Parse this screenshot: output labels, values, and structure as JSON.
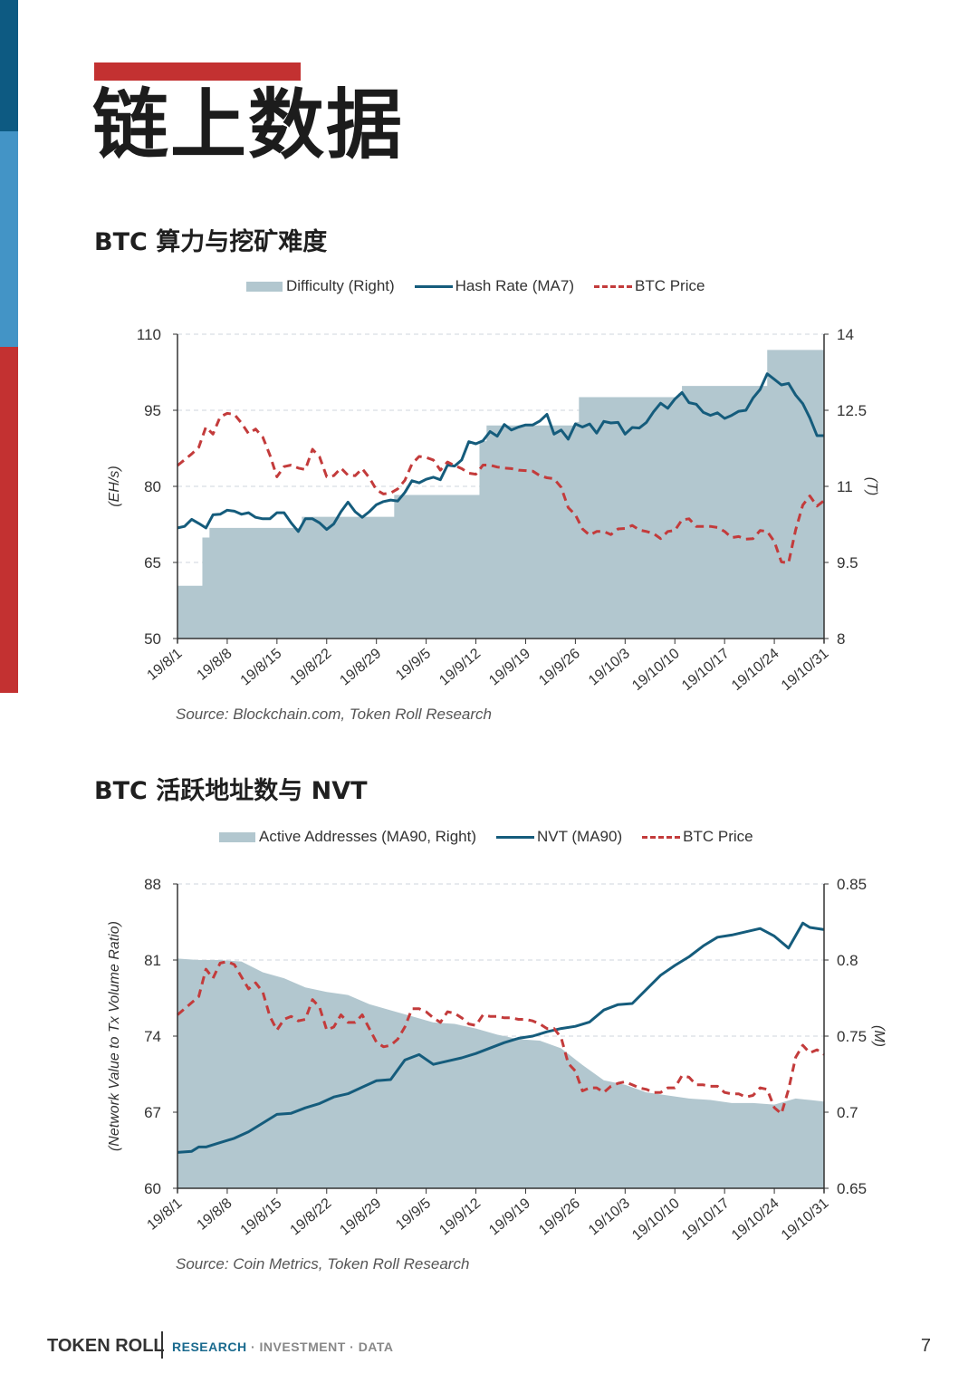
{
  "sidebar": {
    "colors": [
      "#0d5a82",
      "#4394c6",
      "#c33131"
    ]
  },
  "page": {
    "title": "链上数据",
    "accent_color": "#c33131"
  },
  "sections": [
    {
      "title": "BTC 算力与挖矿难度",
      "source": "Source: Blockchain.com, Token Roll Research"
    },
    {
      "title": "BTC 活跃地址数与 NVT",
      "source": "Source: Coin Metrics, Token Roll Research"
    }
  ],
  "footer": {
    "brand": "TOKEN ROLL",
    "tag_highlight": "RESEARCH",
    "tag_rest": " · INVESTMENT · DATA",
    "page_number": "7"
  },
  "chart_data": [
    {
      "type": "line",
      "title": "BTC 算力与挖矿难度",
      "legend": [
        "Difficulty (Right)",
        "Hash Rate (MA7)",
        "BTC Price"
      ],
      "legend_position": "top",
      "grid": true,
      "categories": [
        "19/8/1",
        "19/8/8",
        "19/8/15",
        "19/8/22",
        "19/8/29",
        "19/9/5",
        "19/9/12",
        "19/9/19",
        "19/9/26",
        "19/10/3",
        "19/10/10",
        "19/10/17",
        "19/10/24",
        "19/10/31"
      ],
      "ylabel": "(EH/s)",
      "ylabel_right": "(T)",
      "ylim": [
        50,
        110
      ],
      "yticks": [
        50,
        65,
        80,
        95,
        110
      ],
      "ylim_right": [
        8,
        14
      ],
      "yticks_right": [
        8,
        9.5,
        11,
        12.5,
        14
      ],
      "colors": {
        "difficulty": "#b2c7cf",
        "hash_rate": "#155c7c",
        "price": "#c33b3b"
      },
      "series": [
        {
          "name": "Difficulty (Right)",
          "type": "step-area",
          "axis": "right",
          "steps": [
            {
              "start_day": 0,
              "value": 9.04
            },
            {
              "start_day": 3.5,
              "value": 9.99
            },
            {
              "start_day": 4.5,
              "value": 10.18
            },
            {
              "start_day": 17,
              "value": 10.18
            },
            {
              "start_day": 17.5,
              "value": 10.4
            },
            {
              "start_day": 30.5,
              "value": 10.83
            },
            {
              "start_day": 42.5,
              "value": 11.89
            },
            {
              "start_day": 43.5,
              "value": 12.2
            },
            {
              "start_day": 56,
              "value": 12.27
            },
            {
              "start_day": 56.5,
              "value": 12.76
            },
            {
              "start_day": 70.5,
              "value": 12.83
            },
            {
              "start_day": 71,
              "value": 12.98
            },
            {
              "start_day": 83,
              "value": 13.69
            }
          ]
        },
        {
          "name": "Hash Rate (MA7)",
          "axis": "left",
          "x_days": [
            0,
            1,
            2,
            3,
            4,
            5,
            6,
            7,
            8,
            9,
            10,
            11,
            12,
            13,
            14,
            15,
            16,
            17,
            18,
            19,
            20,
            21,
            22,
            23,
            24,
            25,
            26,
            27,
            28,
            29,
            30,
            31,
            32,
            33,
            34,
            35,
            36,
            37,
            38,
            39,
            40,
            41,
            42,
            43,
            44,
            45,
            46,
            47,
            48,
            49,
            50,
            51,
            52,
            53,
            54,
            55,
            56,
            57,
            58,
            59,
            60,
            61,
            62,
            63,
            64,
            65,
            66,
            67,
            68,
            69,
            70,
            71,
            72,
            73,
            74,
            75,
            76,
            77,
            78,
            79,
            80,
            81,
            82,
            83,
            84,
            85,
            86,
            87,
            88,
            89,
            90,
            91
          ],
          "values": [
            71.8,
            72.1,
            73.5,
            72.7,
            71.8,
            74.4,
            74.5,
            75.3,
            75.1,
            74.5,
            74.8,
            73.9,
            73.6,
            73.6,
            74.8,
            74.8,
            72.8,
            71.1,
            73.6,
            73.6,
            72.8,
            71.5,
            72.6,
            75.0,
            76.9,
            75.0,
            73.9,
            75.0,
            76.4,
            77.0,
            77.3,
            77.1,
            78.8,
            81.1,
            80.7,
            81.4,
            81.8,
            81.3,
            84.2,
            84.0,
            85.2,
            88.8,
            88.4,
            89.0,
            90.8,
            89.9,
            92.2,
            91.1,
            91.7,
            92.1,
            92.1,
            92.9,
            94.2,
            90.3,
            91.1,
            89.3,
            92.3,
            91.7,
            92.3,
            90.5,
            92.8,
            92.5,
            92.6,
            90.3,
            91.6,
            91.5,
            92.6,
            94.7,
            96.4,
            95.4,
            97.2,
            98.5,
            96.5,
            96.2,
            94.6,
            94.0,
            94.5,
            93.4,
            94.0,
            94.8,
            95.0,
            97.4,
            99.1,
            102.2,
            101.1,
            100.0,
            100.3,
            98.0,
            96.3,
            93.5,
            90.0,
            90.0
          ]
        },
        {
          "name": "BTC Price",
          "axis": "right",
          "style": "dashed",
          "x_days": [
            0,
            2,
            3,
            4,
            5,
            6,
            7,
            8,
            9,
            10,
            11,
            12,
            13,
            14,
            15,
            16,
            17,
            18,
            19,
            20,
            21,
            22,
            23,
            24,
            25,
            26,
            27,
            28,
            29,
            30,
            31,
            32,
            33,
            34,
            35,
            36,
            37,
            38,
            39,
            40,
            41,
            42,
            43,
            44,
            45,
            46,
            47,
            48,
            49,
            50,
            51,
            52,
            53,
            54,
            55,
            56,
            57,
            58,
            59,
            60,
            61,
            62,
            63,
            64,
            65,
            66,
            67,
            68,
            69,
            70,
            71,
            72,
            73,
            74,
            75,
            76,
            77,
            78,
            79,
            80,
            81,
            82,
            83,
            84,
            85,
            86,
            87,
            88,
            89,
            90,
            91
          ],
          "values": [
            11.41,
            11.64,
            11.77,
            12.17,
            12.03,
            12.37,
            12.44,
            12.42,
            12.25,
            12.04,
            12.13,
            11.97,
            11.62,
            11.19,
            11.39,
            11.42,
            11.36,
            11.33,
            11.73,
            11.58,
            11.19,
            11.21,
            11.36,
            11.22,
            11.21,
            11.35,
            11.17,
            10.93,
            10.85,
            10.87,
            10.95,
            11.12,
            11.44,
            11.59,
            11.57,
            11.52,
            11.32,
            11.48,
            11.41,
            11.35,
            11.26,
            11.24,
            11.42,
            11.42,
            11.38,
            11.36,
            11.35,
            11.32,
            11.31,
            11.3,
            11.21,
            11.17,
            11.15,
            10.98,
            10.58,
            10.44,
            10.16,
            10.04,
            10.11,
            10.11,
            10.05,
            10.16,
            10.17,
            10.23,
            10.14,
            10.11,
            10.07,
            9.97,
            10.11,
            10.13,
            10.34,
            10.36,
            10.21,
            10.21,
            10.21,
            10.19,
            10.11,
            9.99,
            10.01,
            9.96,
            9.97,
            10.13,
            10.11,
            9.91,
            9.51,
            9.49,
            10.14,
            10.63,
            10.81,
            10.61,
            10.72,
            10.63
          ]
        }
      ]
    },
    {
      "type": "line",
      "title": "BTC 活跃地址数与 NVT",
      "legend": [
        "Active Addresses (MA90, Right)",
        "NVT (MA90)",
        "BTC Price"
      ],
      "legend_position": "top",
      "grid": true,
      "categories": [
        "19/8/1",
        "19/8/8",
        "19/8/15",
        "19/8/22",
        "19/8/29",
        "19/9/5",
        "19/9/12",
        "19/9/19",
        "19/9/26",
        "19/10/3",
        "19/10/10",
        "19/10/17",
        "19/10/24",
        "19/10/31"
      ],
      "ylabel": "(Network Value to Tx Volume Ratio)",
      "ylabel_right": "(M)",
      "ylim": [
        60,
        88
      ],
      "yticks": [
        60,
        67,
        74,
        81,
        88
      ],
      "ylim_right": [
        0.65,
        0.85
      ],
      "yticks_right": [
        0.65,
        0.7,
        0.75,
        0.8,
        0.85
      ],
      "colors": {
        "active_addresses": "#b2c7cf",
        "nvt": "#155c7c",
        "price": "#c33b3b"
      },
      "series": [
        {
          "name": "Active Addresses (MA90, Right)",
          "type": "area",
          "axis": "right",
          "x_days": [
            0,
            3,
            6,
            9,
            12,
            15,
            18,
            21,
            24,
            27,
            30,
            33,
            36,
            39,
            42,
            45,
            48,
            51,
            54,
            57,
            60,
            63,
            66,
            69,
            72,
            75,
            78,
            81,
            84,
            87,
            89,
            91
          ],
          "values": [
            0.801,
            0.8,
            0.8,
            0.799,
            0.792,
            0.788,
            0.782,
            0.779,
            0.777,
            0.771,
            0.767,
            0.763,
            0.759,
            0.758,
            0.755,
            0.751,
            0.748,
            0.747,
            0.742,
            0.731,
            0.721,
            0.718,
            0.713,
            0.711,
            0.709,
            0.708,
            0.706,
            0.706,
            0.705,
            0.709,
            0.708,
            0.707
          ]
        },
        {
          "name": "NVT (MA90)",
          "axis": "left",
          "x_days": [
            0,
            2,
            3,
            4,
            6,
            8,
            10,
            12,
            14,
            16,
            18,
            20,
            22,
            24,
            26,
            28,
            30,
            32,
            34,
            36,
            38,
            40,
            42,
            44,
            46,
            48,
            50,
            52,
            54,
            56,
            58,
            60,
            62,
            64,
            66,
            68,
            70,
            72,
            74,
            76,
            78,
            80,
            82,
            84,
            86,
            88,
            89,
            91
          ],
          "values": [
            63.3,
            63.4,
            63.8,
            63.8,
            64.2,
            64.6,
            65.2,
            66.0,
            66.8,
            66.9,
            67.4,
            67.8,
            68.4,
            68.7,
            69.3,
            69.9,
            70.0,
            71.8,
            72.3,
            71.4,
            71.7,
            72.0,
            72.4,
            72.9,
            73.4,
            73.8,
            74.0,
            74.4,
            74.7,
            74.9,
            75.3,
            76.4,
            76.9,
            77.0,
            78.3,
            79.6,
            80.5,
            81.3,
            82.3,
            83.1,
            83.3,
            83.6,
            83.9,
            83.2,
            82.1,
            84.4,
            84.0,
            83.8
          ]
        },
        {
          "name": "BTC Price",
          "axis": "right",
          "style": "dashed",
          "x_days": [
            0,
            2,
            3,
            4,
            5,
            6,
            7,
            8,
            9,
            10,
            11,
            12,
            13,
            14,
            15,
            16,
            17,
            18,
            19,
            20,
            21,
            22,
            23,
            24,
            25,
            26,
            27,
            28,
            29,
            30,
            31,
            32,
            33,
            34,
            35,
            36,
            37,
            38,
            39,
            40,
            41,
            42,
            43,
            44,
            45,
            46,
            47,
            48,
            49,
            50,
            51,
            52,
            53,
            54,
            55,
            56,
            57,
            58,
            59,
            60,
            61,
            62,
            63,
            64,
            65,
            66,
            67,
            68,
            69,
            70,
            71,
            72,
            73,
            74,
            75,
            76,
            77,
            78,
            79,
            80,
            81,
            82,
            83,
            84,
            85,
            86,
            87,
            88,
            89,
            90,
            91
          ],
          "values": [
            0.764,
            0.772,
            0.776,
            0.794,
            0.788,
            0.798,
            0.799,
            0.797,
            0.789,
            0.781,
            0.785,
            0.779,
            0.763,
            0.754,
            0.761,
            0.763,
            0.76,
            0.761,
            0.774,
            0.769,
            0.754,
            0.756,
            0.764,
            0.759,
            0.759,
            0.764,
            0.755,
            0.746,
            0.743,
            0.744,
            0.748,
            0.756,
            0.768,
            0.768,
            0.766,
            0.762,
            0.759,
            0.766,
            0.765,
            0.762,
            0.758,
            0.757,
            0.764,
            0.763,
            0.763,
            0.762,
            0.762,
            0.761,
            0.761,
            0.76,
            0.758,
            0.755,
            0.755,
            0.749,
            0.732,
            0.727,
            0.714,
            0.716,
            0.716,
            0.713,
            0.717,
            0.719,
            0.72,
            0.718,
            0.716,
            0.715,
            0.713,
            0.713,
            0.716,
            0.716,
            0.724,
            0.723,
            0.718,
            0.718,
            0.717,
            0.717,
            0.713,
            0.712,
            0.712,
            0.71,
            0.711,
            0.716,
            0.715,
            0.703,
            0.699,
            0.715,
            0.736,
            0.744,
            0.739,
            0.741,
            0.738,
            0.736
          ]
        }
      ]
    }
  ]
}
